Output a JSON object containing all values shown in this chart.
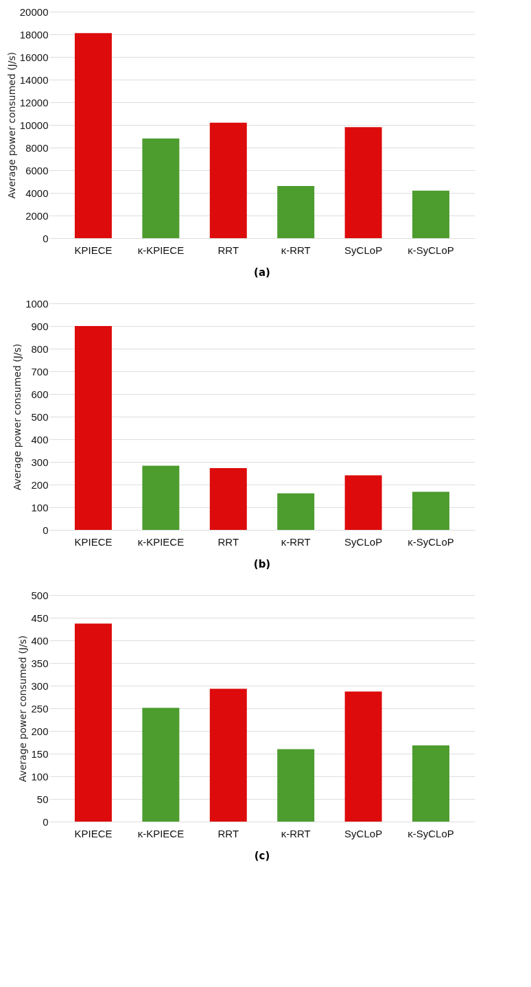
{
  "chart_data": [
    {
      "type": "bar",
      "title": "(a)",
      "ylabel": "Average power consumed (J/s)",
      "categories": [
        "KPIECE",
        "κ-KPIECE",
        "RRT",
        "κ-RRT",
        "SyCLoP",
        "κ-SyCLoP"
      ],
      "values": [
        18100,
        8800,
        10200,
        4600,
        9800,
        4200
      ],
      "colors": [
        "#dd0b0b",
        "#4c9c2e",
        "#dd0b0b",
        "#4c9c2e",
        "#dd0b0b",
        "#4c9c2e"
      ],
      "ylim": [
        0,
        20000
      ],
      "yticks": [
        0,
        2000,
        4000,
        6000,
        8000,
        10000,
        12000,
        14000,
        16000,
        18000,
        20000
      ],
      "grid": "y"
    },
    {
      "type": "bar",
      "title": "(b)",
      "ylabel": "Average power consumed (J/s)",
      "categories": [
        "KPIECE",
        "κ-KPIECE",
        "RRT",
        "κ-RRT",
        "SyCLoP",
        "κ-SyCLoP"
      ],
      "values": [
        900,
        283,
        273,
        161,
        241,
        168
      ],
      "colors": [
        "#dd0b0b",
        "#4c9c2e",
        "#dd0b0b",
        "#4c9c2e",
        "#dd0b0b",
        "#4c9c2e"
      ],
      "ylim": [
        0,
        1000
      ],
      "yticks": [
        0,
        100,
        200,
        300,
        400,
        500,
        600,
        700,
        800,
        900,
        1000
      ],
      "grid": "y"
    },
    {
      "type": "bar",
      "title": "(c)",
      "ylabel": "Average power consumed (J/s)",
      "categories": [
        "KPIECE",
        "κ-KPIECE",
        "RRT",
        "κ-RRT",
        "SyCLoP",
        "κ-SyCLoP"
      ],
      "values": [
        437,
        251,
        293,
        160,
        287,
        168
      ],
      "colors": [
        "#dd0b0b",
        "#4c9c2e",
        "#dd0b0b",
        "#4c9c2e",
        "#dd0b0b",
        "#4c9c2e"
      ],
      "ylim": [
        0,
        500
      ],
      "yticks": [
        0,
        50,
        100,
        150,
        200,
        250,
        300,
        350,
        400,
        450,
        500
      ],
      "grid": "y"
    }
  ]
}
